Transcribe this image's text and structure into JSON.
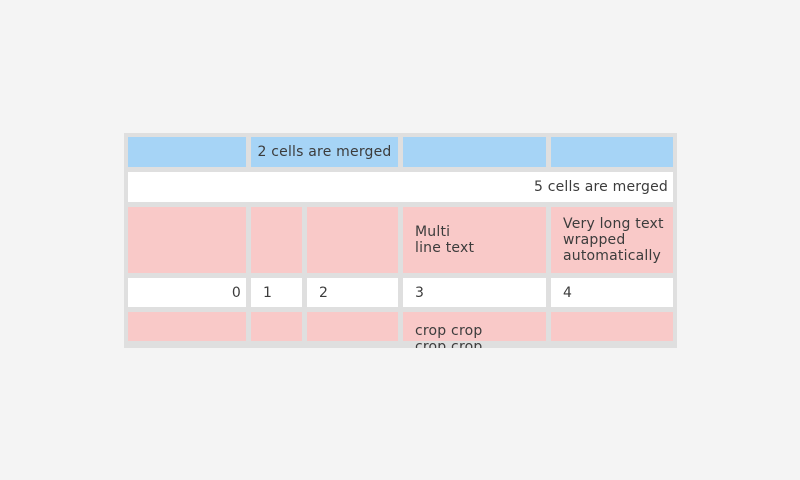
{
  "page": {
    "background": "#f4f4f4"
  },
  "table": {
    "colors": {
      "header_blue": "#a6d4f6",
      "row_pink": "#f9c9c8",
      "row_white": "#ffffff",
      "frame_gray": "#dfdfdf",
      "text": "#3c3c3c"
    },
    "rows": [
      {
        "cells": [
          {
            "text": "",
            "bg": "blue",
            "span": 1
          },
          {
            "text": "2 cells are merged",
            "bg": "blue",
            "span": 2,
            "align": "center"
          },
          {
            "text": "",
            "bg": "blue",
            "span": 1
          },
          {
            "text": "",
            "bg": "blue",
            "span": 1
          }
        ]
      },
      {
        "cells": [
          {
            "text": "5 cells are merged",
            "bg": "white",
            "span": 5,
            "align": "right"
          }
        ]
      },
      {
        "cells": [
          {
            "text": "",
            "bg": "pink",
            "span": 1
          },
          {
            "text": "",
            "bg": "pink",
            "span": 1
          },
          {
            "text": "",
            "bg": "pink",
            "span": 1
          },
          {
            "text": "Multi\nline text",
            "bg": "pink",
            "span": 1
          },
          {
            "text": "Very long text wrapped automatically",
            "bg": "pink",
            "span": 1
          }
        ]
      },
      {
        "cells": [
          {
            "text": "0",
            "bg": "white",
            "span": 1,
            "align": "right"
          },
          {
            "text": "1",
            "bg": "white",
            "span": 1
          },
          {
            "text": "2",
            "bg": "white",
            "span": 1
          },
          {
            "text": "3",
            "bg": "white",
            "span": 1
          },
          {
            "text": "4",
            "bg": "white",
            "span": 1
          }
        ]
      },
      {
        "cells": [
          {
            "text": "",
            "bg": "pink",
            "span": 1
          },
          {
            "text": "",
            "bg": "pink",
            "span": 1
          },
          {
            "text": "",
            "bg": "pink",
            "span": 1
          },
          {
            "text": "crop crop crop crop",
            "bg": "pink",
            "span": 1,
            "crop": true
          },
          {
            "text": "",
            "bg": "pink",
            "span": 1
          }
        ]
      }
    ]
  }
}
